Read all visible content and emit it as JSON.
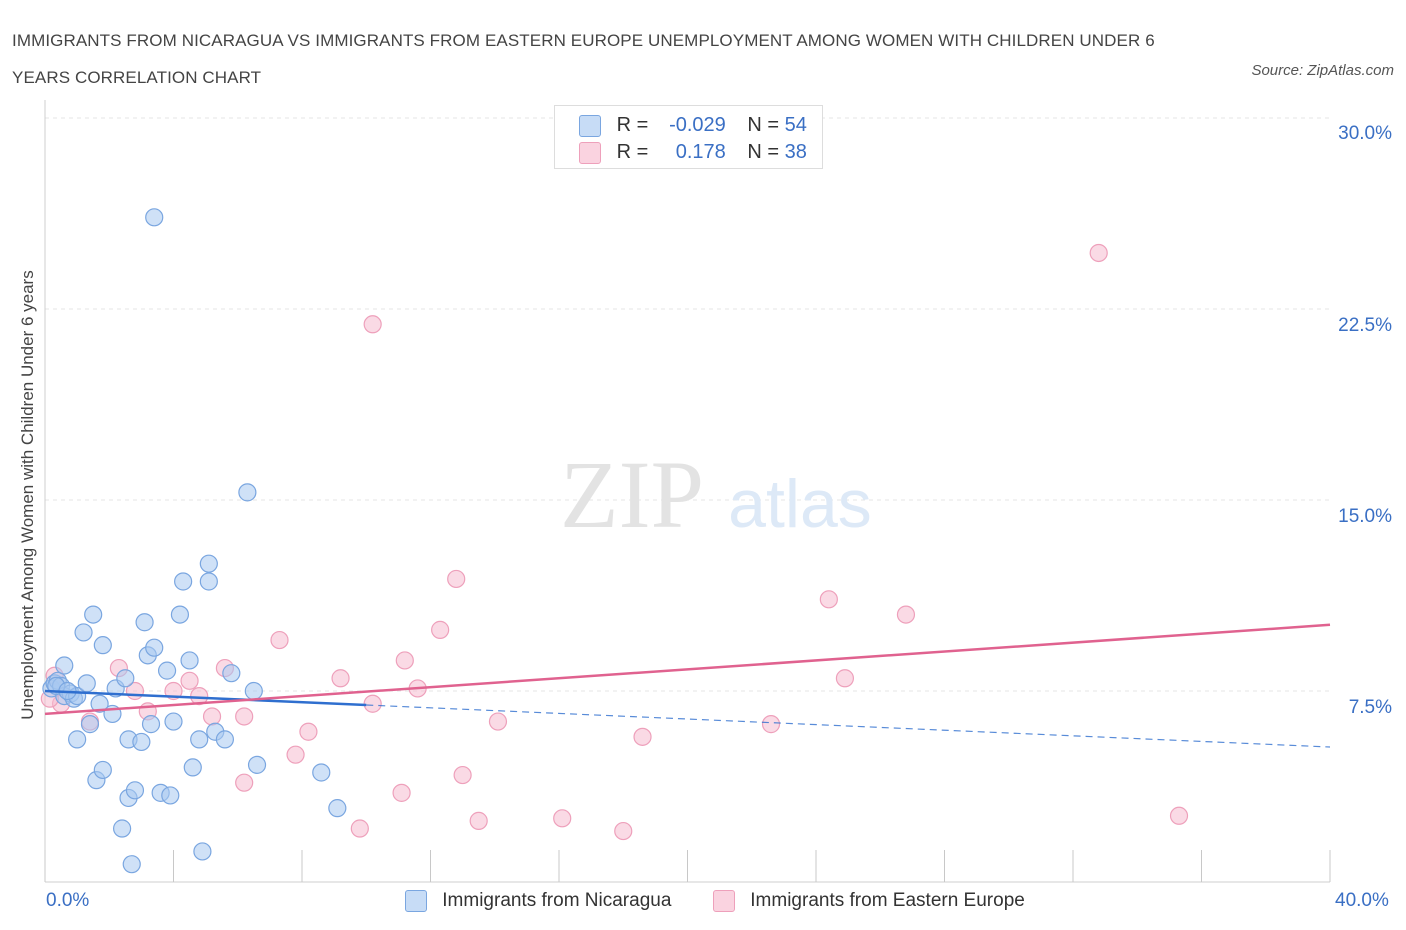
{
  "header": {
    "title": "IMMIGRANTS FROM NICARAGUA VS IMMIGRANTS FROM EASTERN EUROPE UNEMPLOYMENT AMONG WOMEN WITH CHILDREN UNDER 6 YEARS CORRELATION CHART",
    "source": "Source: ZipAtlas.com"
  },
  "watermark": {
    "zip": "ZIP",
    "atlas": "atlas"
  },
  "legend": {
    "r_label": "R =",
    "n_label": "N =",
    "series": [
      {
        "r": "-0.029",
        "n": "54"
      },
      {
        "r": "0.178",
        "n": "38"
      }
    ]
  },
  "chart_data": {
    "type": "scatter",
    "xlabel": "",
    "ylabel": "Unemployment Among Women with Children Under 6 years",
    "xlim": [
      0,
      40
    ],
    "ylim": [
      0,
      30
    ],
    "x_tick_labels": [
      "0.0%",
      "40.0%"
    ],
    "y_ticks": [
      7.5,
      15,
      22.5,
      30
    ],
    "y_tick_labels": [
      "7.5%",
      "15.0%",
      "22.5%",
      "30.0%"
    ],
    "grid": true,
    "legend_position": "bottom",
    "colors": {
      "nicaragua_fill": "#a8c8f0",
      "nicaragua_line": "#2f6fcf",
      "europe_fill": "#f5bcd0",
      "europe_line": "#e0628f",
      "accent_text": "#3a6fc4"
    },
    "series": [
      {
        "name": "Immigrants from Nicaragua",
        "trend": {
          "x": [
            0,
            10
          ],
          "y": [
            7.5,
            6.95
          ],
          "dashed_to_x": 40,
          "dashed_end_y": 5.3
        },
        "points": [
          [
            0.2,
            7.6
          ],
          [
            0.3,
            7.8
          ],
          [
            0.4,
            7.9
          ],
          [
            0.5,
            7.7
          ],
          [
            0.6,
            8.5
          ],
          [
            0.6,
            7.3
          ],
          [
            0.8,
            7.4
          ],
          [
            0.9,
            7.2
          ],
          [
            1.0,
            7.3
          ],
          [
            1.2,
            9.8
          ],
          [
            1.3,
            7.8
          ],
          [
            1.4,
            6.2
          ],
          [
            1.5,
            10.5
          ],
          [
            1.6,
            4.0
          ],
          [
            1.7,
            7.0
          ],
          [
            1.8,
            4.4
          ],
          [
            1.8,
            9.3
          ],
          [
            1.0,
            5.6
          ],
          [
            2.1,
            6.6
          ],
          [
            2.2,
            7.6
          ],
          [
            2.4,
            2.1
          ],
          [
            2.5,
            8.0
          ],
          [
            2.6,
            5.6
          ],
          [
            2.6,
            3.3
          ],
          [
            2.7,
            0.7
          ],
          [
            2.8,
            3.6
          ],
          [
            3.0,
            5.5
          ],
          [
            3.1,
            10.2
          ],
          [
            3.2,
            8.9
          ],
          [
            3.3,
            6.2
          ],
          [
            3.4,
            9.2
          ],
          [
            3.4,
            26.1
          ],
          [
            3.6,
            3.5
          ],
          [
            3.8,
            8.3
          ],
          [
            3.9,
            3.4
          ],
          [
            4.0,
            6.3
          ],
          [
            4.2,
            10.5
          ],
          [
            4.3,
            11.8
          ],
          [
            4.5,
            8.7
          ],
          [
            4.6,
            4.5
          ],
          [
            4.8,
            5.6
          ],
          [
            4.9,
            1.2
          ],
          [
            5.1,
            12.5
          ],
          [
            5.1,
            11.8
          ],
          [
            5.3,
            5.9
          ],
          [
            5.6,
            5.6
          ],
          [
            5.8,
            8.2
          ],
          [
            6.3,
            15.3
          ],
          [
            6.5,
            7.5
          ],
          [
            6.6,
            4.6
          ],
          [
            8.6,
            4.3
          ],
          [
            9.1,
            2.9
          ],
          [
            0.35,
            7.7
          ],
          [
            0.7,
            7.5
          ]
        ]
      },
      {
        "name": "Immigrants from Eastern Europe",
        "trend": {
          "x": [
            0,
            40
          ],
          "y": [
            6.6,
            10.1
          ]
        },
        "points": [
          [
            0.3,
            8.1
          ],
          [
            0.5,
            7.0
          ],
          [
            1.4,
            6.3
          ],
          [
            2.3,
            8.4
          ],
          [
            2.8,
            7.5
          ],
          [
            3.2,
            6.7
          ],
          [
            4.0,
            7.5
          ],
          [
            4.5,
            7.9
          ],
          [
            4.8,
            7.3
          ],
          [
            5.2,
            6.5
          ],
          [
            5.6,
            8.4
          ],
          [
            6.2,
            3.9
          ],
          [
            6.2,
            6.5
          ],
          [
            7.3,
            9.5
          ],
          [
            7.8,
            5.0
          ],
          [
            8.2,
            5.9
          ],
          [
            9.2,
            8.0
          ],
          [
            9.8,
            2.1
          ],
          [
            10.2,
            7.0
          ],
          [
            10.2,
            21.9
          ],
          [
            11.1,
            3.5
          ],
          [
            11.2,
            8.7
          ],
          [
            11.6,
            7.6
          ],
          [
            12.3,
            9.9
          ],
          [
            12.8,
            11.9
          ],
          [
            13.0,
            4.2
          ],
          [
            13.5,
            2.4
          ],
          [
            14.1,
            6.3
          ],
          [
            16.1,
            2.5
          ],
          [
            18.0,
            2.0
          ],
          [
            18.6,
            5.7
          ],
          [
            22.6,
            6.2
          ],
          [
            24.4,
            11.1
          ],
          [
            24.9,
            8.0
          ],
          [
            26.8,
            10.5
          ],
          [
            32.8,
            24.7
          ],
          [
            35.3,
            2.6
          ],
          [
            0.15,
            7.2
          ]
        ]
      }
    ]
  }
}
